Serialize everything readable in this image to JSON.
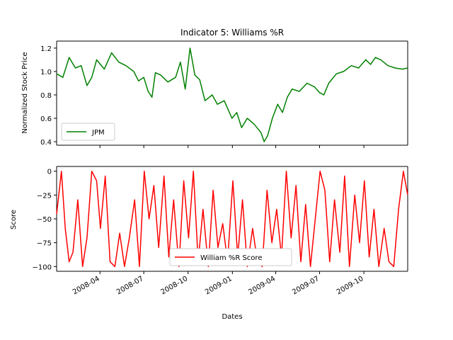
{
  "chart_data": {
    "type": "line",
    "title": "Indicator 5: Williams %R",
    "xlabel": "Dates",
    "x_ticks": [
      "2008-04",
      "2008-07",
      "2008-10",
      "2009-01",
      "2009-04",
      "2009-07",
      "2009-10"
    ],
    "xlim": [
      "2008-01-02",
      "2009-12-31"
    ],
    "grid": false,
    "panels": [
      {
        "ylabel": "Normalized Stock Price",
        "ylim": [
          0.37,
          1.26
        ],
        "y_ticks": [
          "0.4",
          "0.6",
          "0.8",
          "1.0",
          "1.2"
        ],
        "legend_position": "lower-left",
        "series": [
          {
            "name": "JPM",
            "color": "#008000",
            "x": [
              "2008-01-02",
              "2008-01-15",
              "2008-01-28",
              "2008-02-10",
              "2008-02-22",
              "2008-03-05",
              "2008-03-15",
              "2008-03-25",
              "2008-04-10",
              "2008-04-25",
              "2008-05-10",
              "2008-05-25",
              "2008-06-10",
              "2008-06-20",
              "2008-07-01",
              "2008-07-10",
              "2008-07-18",
              "2008-07-25",
              "2008-08-05",
              "2008-08-20",
              "2008-09-05",
              "2008-09-15",
              "2008-09-25",
              "2008-10-05",
              "2008-10-15",
              "2008-10-25",
              "2008-11-05",
              "2008-11-20",
              "2008-12-01",
              "2008-12-15",
              "2008-12-31",
              "2009-01-10",
              "2009-01-20",
              "2009-02-01",
              "2009-02-15",
              "2009-03-01",
              "2009-03-08",
              "2009-03-15",
              "2009-03-25",
              "2009-04-05",
              "2009-04-15",
              "2009-04-25",
              "2009-05-05",
              "2009-05-20",
              "2009-06-05",
              "2009-06-20",
              "2009-07-01",
              "2009-07-10",
              "2009-07-20",
              "2009-08-05",
              "2009-08-20",
              "2009-09-05",
              "2009-09-20",
              "2009-10-05",
              "2009-10-15",
              "2009-10-25",
              "2009-11-05",
              "2009-11-20",
              "2009-12-05",
              "2009-12-20",
              "2009-12-31"
            ],
            "y": [
              0.98,
              0.95,
              1.12,
              1.03,
              1.05,
              0.88,
              0.95,
              1.1,
              1.02,
              1.16,
              1.08,
              1.05,
              1.0,
              0.92,
              0.95,
              0.83,
              0.78,
              0.99,
              0.97,
              0.91,
              0.95,
              1.08,
              0.85,
              1.2,
              0.97,
              0.93,
              0.75,
              0.8,
              0.72,
              0.75,
              0.6,
              0.65,
              0.52,
              0.6,
              0.55,
              0.48,
              0.4,
              0.45,
              0.6,
              0.72,
              0.65,
              0.78,
              0.85,
              0.83,
              0.9,
              0.87,
              0.82,
              0.8,
              0.9,
              0.98,
              1.0,
              1.05,
              1.03,
              1.1,
              1.06,
              1.12,
              1.1,
              1.05,
              1.03,
              1.02,
              1.03
            ]
          }
        ]
      },
      {
        "ylabel": "Score",
        "ylim": [
          -105,
          5
        ],
        "y_ticks": [
          "0",
          "−25",
          "−50",
          "−75",
          "−100"
        ],
        "legend_position": "lower-center",
        "series": [
          {
            "name": "William %R Score",
            "color": "#ff0000",
            "x": [
              "2008-01-02",
              "2008-01-12",
              "2008-01-20",
              "2008-01-28",
              "2008-02-05",
              "2008-02-15",
              "2008-02-25",
              "2008-03-05",
              "2008-03-15",
              "2008-03-25",
              "2008-04-02",
              "2008-04-12",
              "2008-04-22",
              "2008-05-02",
              "2008-05-12",
              "2008-05-22",
              "2008-06-01",
              "2008-06-12",
              "2008-06-22",
              "2008-07-02",
              "2008-07-12",
              "2008-07-22",
              "2008-08-01",
              "2008-08-12",
              "2008-08-22",
              "2008-09-01",
              "2008-09-12",
              "2008-09-22",
              "2008-10-02",
              "2008-10-12",
              "2008-10-22",
              "2008-11-01",
              "2008-11-12",
              "2008-11-22",
              "2008-12-02",
              "2008-12-12",
              "2008-12-22",
              "2009-01-02",
              "2009-01-12",
              "2009-01-22",
              "2009-02-01",
              "2009-02-12",
              "2009-02-22",
              "2009-03-04",
              "2009-03-14",
              "2009-03-24",
              "2009-04-03",
              "2009-04-13",
              "2009-04-23",
              "2009-05-03",
              "2009-05-13",
              "2009-05-23",
              "2009-06-02",
              "2009-06-12",
              "2009-06-22",
              "2009-07-02",
              "2009-07-12",
              "2009-07-22",
              "2009-08-01",
              "2009-08-12",
              "2009-08-22",
              "2009-09-01",
              "2009-09-12",
              "2009-09-22",
              "2009-10-02",
              "2009-10-12",
              "2009-10-22",
              "2009-11-01",
              "2009-11-12",
              "2009-11-22",
              "2009-12-02",
              "2009-12-12",
              "2009-12-22",
              "2009-12-31"
            ],
            "y": [
              -45,
              0,
              -60,
              -95,
              -85,
              -30,
              -100,
              -70,
              0,
              -10,
              -60,
              -5,
              -95,
              -100,
              -65,
              -100,
              -70,
              -30,
              -100,
              0,
              -50,
              -15,
              -80,
              -5,
              -90,
              -30,
              -100,
              -10,
              -70,
              0,
              -95,
              -40,
              -100,
              -20,
              -80,
              -55,
              -95,
              -10,
              -90,
              -30,
              -100,
              -60,
              -95,
              -100,
              -20,
              -75,
              -40,
              -90,
              0,
              -70,
              -15,
              -95,
              -35,
              -100,
              -50,
              0,
              -20,
              -95,
              -30,
              -85,
              -5,
              -100,
              -25,
              -75,
              -10,
              -90,
              -40,
              -100,
              -60,
              -95,
              -100,
              -40,
              0,
              -25
            ]
          }
        ]
      }
    ]
  }
}
